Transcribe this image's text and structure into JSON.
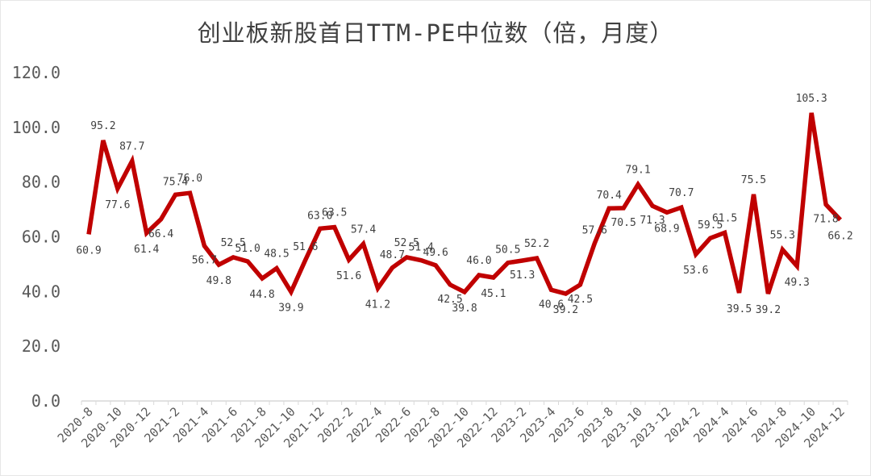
{
  "chart_data": {
    "type": "line",
    "title": "创业板新股首日TTM-PE中位数（倍，月度）",
    "xlabel": "",
    "ylabel": "",
    "ylim": [
      0,
      120
    ],
    "yticks": [
      "0.0",
      "20.0",
      "40.0",
      "60.0",
      "80.0",
      "100.0",
      "120.0"
    ],
    "grid": false,
    "legend": null,
    "line_color": "#C00000",
    "categories": [
      "2020-8",
      "2020-9",
      "2020-10",
      "2020-11",
      "2020-12",
      "2021-1",
      "2021-2",
      "2021-3",
      "2021-4",
      "2021-5",
      "2021-6",
      "2021-7",
      "2021-8",
      "2021-9",
      "2021-10",
      "2021-11",
      "2021-12",
      "2022-1",
      "2022-2",
      "2022-3",
      "2022-4",
      "2022-5",
      "2022-6",
      "2022-7",
      "2022-8",
      "2022-9",
      "2022-10",
      "2022-11",
      "2022-12",
      "2023-1",
      "2023-2",
      "2023-3",
      "2023-4",
      "2023-5",
      "2023-6",
      "2023-7",
      "2023-8",
      "2023-9",
      "2023-10",
      "2023-11",
      "2023-12",
      "2024-1",
      "2024-2",
      "2024-3",
      "2024-4",
      "2024-5",
      "2024-6",
      "2024-7",
      "2024-8",
      "2024-9",
      "2024-10",
      "2024-11",
      "2024-12"
    ],
    "x_tick_labels": [
      "2020-8",
      "2020-10",
      "2020-12",
      "2021-2",
      "2021-4",
      "2021-6",
      "2021-8",
      "2021-10",
      "2021-12",
      "2022-2",
      "2022-4",
      "2022-6",
      "2022-8",
      "2022-10",
      "2022-12",
      "2023-2",
      "2023-4",
      "2023-6",
      "2023-8",
      "2023-10",
      "2023-12",
      "2024-2",
      "2024-4",
      "2024-6",
      "2024-8",
      "2024-10",
      "2024-12"
    ],
    "series": [
      {
        "name": "创业板新股首日TTM-PE中位数",
        "values": [
          60.9,
          95.2,
          77.6,
          87.7,
          61.4,
          66.4,
          75.4,
          76.0,
          56.7,
          49.8,
          52.5,
          51.0,
          44.8,
          48.5,
          39.9,
          51.6,
          63.0,
          63.5,
          51.6,
          57.4,
          41.2,
          48.7,
          52.5,
          51.4,
          49.6,
          42.5,
          39.8,
          46.0,
          45.1,
          50.5,
          51.3,
          52.2,
          40.6,
          39.2,
          42.5,
          57.6,
          70.4,
          70.5,
          79.1,
          71.3,
          68.9,
          70.7,
          53.6,
          59.5,
          61.5,
          39.5,
          75.5,
          39.2,
          55.3,
          49.3,
          105.3,
          71.8,
          66.2
        ]
      }
    ]
  }
}
